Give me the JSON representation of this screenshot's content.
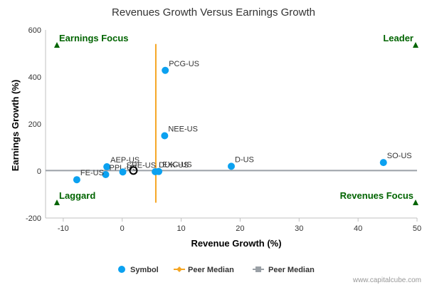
{
  "chart_data": {
    "type": "scatter",
    "title": "Revenues Growth Versus Earnings Growth",
    "xlabel": "Revenue Growth (%)",
    "ylabel": "Earnings Growth (%)",
    "xlim": [
      -13,
      50
    ],
    "ylim": [
      -200,
      600
    ],
    "xticks": [
      -10,
      0,
      10,
      20,
      30,
      40,
      50
    ],
    "yticks": [
      -200,
      0,
      200,
      400,
      600
    ],
    "grid": false,
    "legend_position": "bottom",
    "series": [
      {
        "name": "Symbol",
        "points": [
          {
            "label": "PCG-US",
            "x": 7.3,
            "y": 428
          },
          {
            "label": "NEE-US",
            "x": 7.2,
            "y": 150
          },
          {
            "label": "D-US",
            "x": 18.5,
            "y": 20
          },
          {
            "label": "SO-US",
            "x": 44.3,
            "y": 36
          },
          {
            "label": "AEP-US",
            "x": -2.6,
            "y": 18
          },
          {
            "label": "PPL-US",
            "x": -2.8,
            "y": -15
          },
          {
            "label": "FE-US",
            "x": -7.7,
            "y": -37
          },
          {
            "label": "SRE-US",
            "x": 0.1,
            "y": -4
          },
          {
            "label": "DUK-US",
            "x": 5.6,
            "y": -3
          },
          {
            "label": "EXC-US",
            "x": 6.2,
            "y": -2
          }
        ],
        "highlight": {
          "label": "",
          "x": 1.9,
          "y": 2
        }
      },
      {
        "name": "Peer Median",
        "orientation": "vertical",
        "value": 5.7,
        "range": [
          -135,
          540
        ]
      },
      {
        "name": "Peer Median",
        "orientation": "horizontal",
        "value": 2,
        "range": [
          -13,
          50
        ]
      }
    ],
    "quadrants": {
      "top_left": "Earnings Focus",
      "top_right": "Leader",
      "bottom_left": "Laggard",
      "bottom_right": "Revenues Focus"
    }
  },
  "credit": "www.capitalcube.com",
  "colors": {
    "points": "#0ba1f0",
    "median_v": "#f5a623",
    "median_h": "#9aa0a6",
    "quadrant": "#006400"
  }
}
